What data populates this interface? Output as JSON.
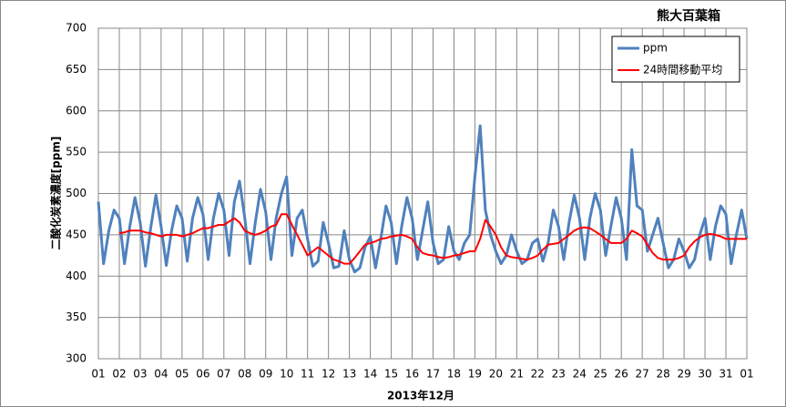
{
  "chart_data": {
    "type": "line",
    "title": "熊大百葉箱",
    "xlabel": "2013年12月",
    "ylabel": "二酸化炭素濃度[ppm]",
    "x": [
      0,
      6,
      12,
      18,
      24,
      30,
      36,
      42,
      48,
      54,
      60,
      66,
      72,
      78,
      84,
      90,
      96,
      102,
      108,
      114,
      120,
      126,
      132,
      138,
      144,
      150,
      156,
      162,
      168,
      174,
      180,
      186,
      192,
      198,
      204,
      210,
      216,
      222,
      228,
      234,
      240,
      246,
      252,
      258,
      264,
      270,
      276,
      282,
      288,
      294,
      300,
      306,
      312,
      318,
      324,
      330,
      336,
      342,
      348,
      354,
      360,
      366,
      372,
      378,
      384,
      390,
      396,
      402,
      408,
      414,
      420,
      426,
      432,
      438,
      444,
      450,
      456,
      462,
      468,
      474,
      480,
      486,
      492,
      498,
      504,
      510,
      516,
      522,
      528,
      534,
      540,
      546,
      552,
      558,
      564,
      570,
      576,
      582,
      588,
      594,
      600,
      606,
      612,
      618,
      624,
      630,
      636,
      642,
      648,
      654,
      660,
      666,
      672,
      678,
      684,
      690,
      696,
      702,
      708,
      714,
      720,
      726,
      732,
      738,
      744
    ],
    "series": [
      {
        "name": "ppm",
        "color": "#4f81bd",
        "values": [
          490,
          415,
          455,
          480,
          470,
          415,
          460,
          495,
          465,
          412,
          458,
          498,
          460,
          413,
          455,
          485,
          470,
          418,
          470,
          495,
          475,
          420,
          470,
          500,
          480,
          425,
          490,
          515,
          470,
          415,
          465,
          505,
          478,
          420,
          470,
          500,
          520,
          425,
          470,
          480,
          445,
          412,
          418,
          465,
          440,
          410,
          412,
          455,
          420,
          405,
          410,
          435,
          448,
          410,
          445,
          485,
          465,
          415,
          460,
          495,
          470,
          420,
          455,
          490,
          440,
          415,
          420,
          460,
          430,
          420,
          440,
          450,
          520,
          582,
          480,
          450,
          430,
          415,
          425,
          450,
          430,
          415,
          420,
          440,
          445,
          418,
          440,
          480,
          460,
          420,
          465,
          498,
          470,
          420,
          470,
          500,
          480,
          425,
          460,
          495,
          470,
          420,
          553,
          485,
          480,
          430,
          450,
          470,
          440,
          410,
          420,
          445,
          430,
          410,
          420,
          450,
          470,
          420,
          460,
          485,
          475,
          415,
          450,
          480,
          445
        ]
      },
      {
        "name": "24時間移動平均",
        "color": "#ff0000",
        "values": [
          null,
          null,
          null,
          null,
          452,
          453,
          455,
          455,
          455,
          453,
          452,
          450,
          448,
          450,
          450,
          450,
          448,
          450,
          452,
          455,
          458,
          458,
          460,
          462,
          462,
          466,
          470,
          465,
          455,
          452,
          450,
          452,
          455,
          460,
          462,
          475,
          475,
          462,
          450,
          438,
          425,
          430,
          435,
          430,
          425,
          420,
          418,
          415,
          415,
          422,
          430,
          438,
          440,
          442,
          445,
          446,
          448,
          449,
          450,
          448,
          445,
          435,
          428,
          426,
          425,
          423,
          422,
          423,
          425,
          426,
          428,
          430,
          430,
          445,
          468,
          460,
          450,
          435,
          425,
          423,
          422,
          421,
          420,
          422,
          425,
          432,
          438,
          439,
          440,
          445,
          450,
          455,
          458,
          459,
          458,
          454,
          450,
          445,
          440,
          440,
          440,
          445,
          455,
          452,
          448,
          438,
          428,
          422,
          420,
          420,
          420,
          422,
          425,
          435,
          442,
          447,
          450,
          451,
          450,
          448,
          445,
          445,
          445,
          445,
          445
        ]
      }
    ],
    "xlim": [
      0,
      744
    ],
    "xticks": [
      {
        "value": 0,
        "label": "01"
      },
      {
        "value": 24,
        "label": "02"
      },
      {
        "value": 48,
        "label": "03"
      },
      {
        "value": 72,
        "label": "04"
      },
      {
        "value": 96,
        "label": "05"
      },
      {
        "value": 120,
        "label": "06"
      },
      {
        "value": 144,
        "label": "07"
      },
      {
        "value": 168,
        "label": "08"
      },
      {
        "value": 192,
        "label": "09"
      },
      {
        "value": 216,
        "label": "10"
      },
      {
        "value": 240,
        "label": "11"
      },
      {
        "value": 264,
        "label": "12"
      },
      {
        "value": 288,
        "label": "13"
      },
      {
        "value": 312,
        "label": "14"
      },
      {
        "value": 336,
        "label": "15"
      },
      {
        "value": 360,
        "label": "16"
      },
      {
        "value": 384,
        "label": "17"
      },
      {
        "value": 408,
        "label": "18"
      },
      {
        "value": 432,
        "label": "19"
      },
      {
        "value": 456,
        "label": "20"
      },
      {
        "value": 480,
        "label": "21"
      },
      {
        "value": 504,
        "label": "22"
      },
      {
        "value": 528,
        "label": "23"
      },
      {
        "value": 552,
        "label": "24"
      },
      {
        "value": 576,
        "label": "25"
      },
      {
        "value": 600,
        "label": "26"
      },
      {
        "value": 624,
        "label": "27"
      },
      {
        "value": 648,
        "label": "28"
      },
      {
        "value": 672,
        "label": "29"
      },
      {
        "value": 696,
        "label": "30"
      },
      {
        "value": 720,
        "label": "31"
      },
      {
        "value": 744,
        "label": "01"
      }
    ],
    "ylim": [
      300,
      700
    ],
    "yticks": [
      300,
      350,
      400,
      450,
      500,
      550,
      600,
      650,
      700
    ],
    "grid": true,
    "legend": "top-right"
  }
}
